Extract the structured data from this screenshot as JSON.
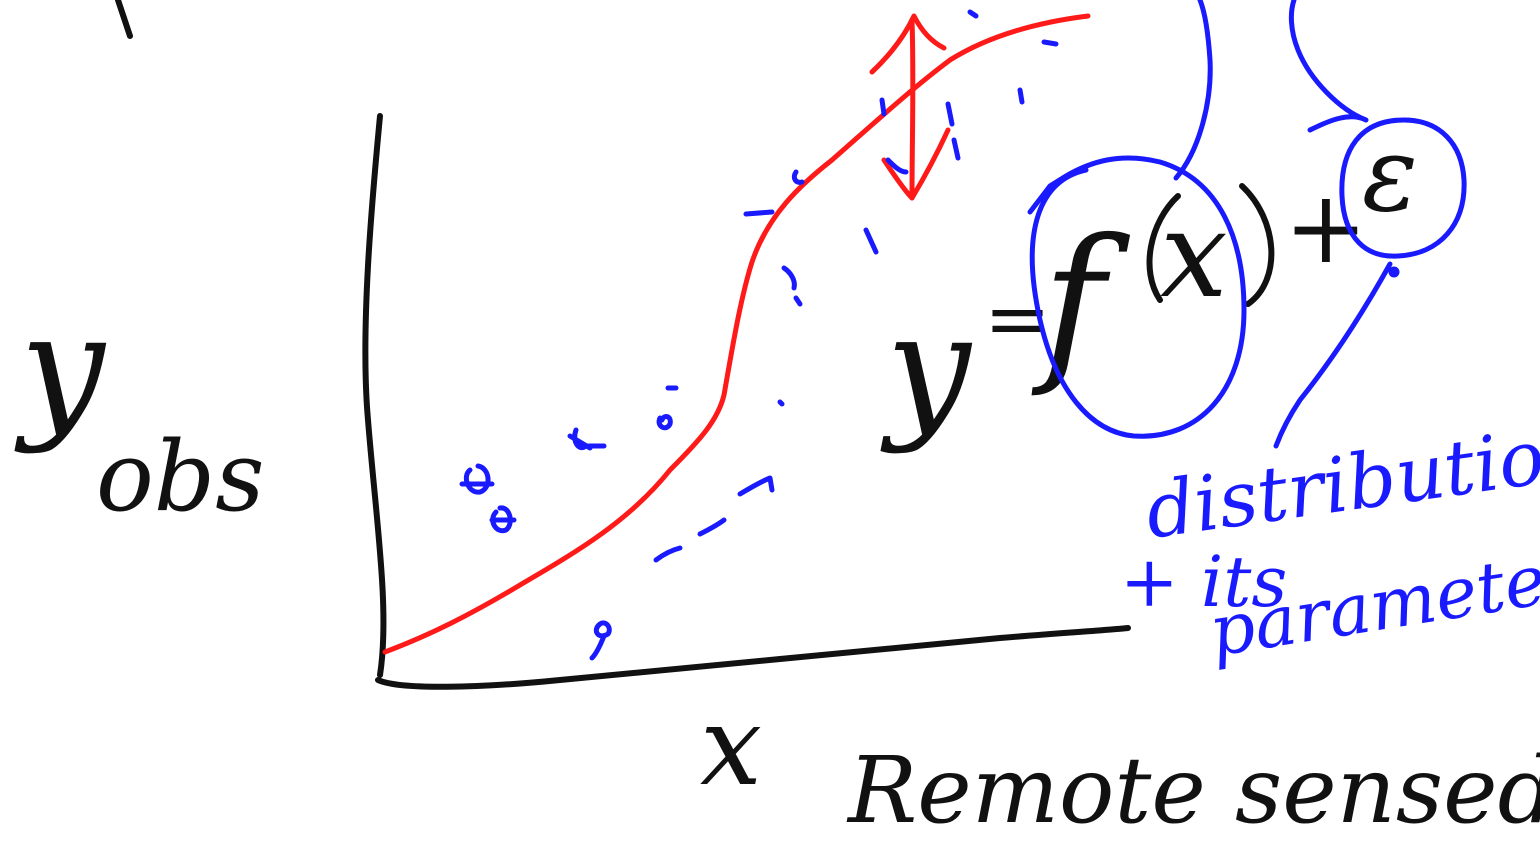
{
  "colors": {
    "background": "#ffffff",
    "axes_ink": "#111111",
    "curve_ink": "#ff1a1a",
    "annotation_ink": "#1a1aff"
  },
  "y_axis_label": {
    "main": "y",
    "subscript": "obs"
  },
  "x_axis_label": {
    "symbol": "x",
    "caption": "Remote sensed"
  },
  "equation": {
    "lhs": "y",
    "equals": "=",
    "function": "f",
    "argument": "x",
    "plus": "+",
    "error": "ε"
  },
  "note": {
    "line1": "distribution",
    "line2": "+ its",
    "line3": "parameters"
  }
}
